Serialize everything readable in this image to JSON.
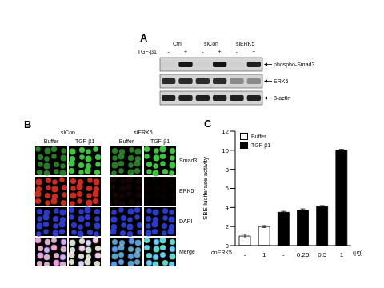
{
  "panel_a": {
    "label": "A",
    "groups": [
      "Ctrl",
      "siCon",
      "siERK5"
    ],
    "treatment_label": "TGF-β1",
    "lanes": [
      "-",
      "+",
      "-",
      "+",
      "-",
      "+"
    ],
    "bands": [
      {
        "label": "phospho-Smad3",
        "intensity": [
          0.02,
          0.9,
          0.02,
          0.9,
          0.02,
          0.85
        ]
      },
      {
        "label": "ERK5",
        "intensity": [
          0.8,
          0.8,
          0.8,
          0.8,
          0.35,
          0.35
        ]
      },
      {
        "label": "β-actin",
        "intensity": [
          0.85,
          0.85,
          0.85,
          0.85,
          0.85,
          0.85
        ]
      }
    ]
  },
  "panel_b": {
    "label": "B",
    "groups": [
      "siCon",
      "siERK5"
    ],
    "conditions": [
      "Buffer",
      "TGF-β1"
    ],
    "rows": [
      {
        "label": "Smad3",
        "color": "#40d040",
        "intensity": [
          0.6,
          0.95,
          0.6,
          0.95
        ]
      },
      {
        "label": "ERK5",
        "color": "#e03020",
        "intensity": [
          0.9,
          0.9,
          0.1,
          0.04
        ]
      },
      {
        "label": "DAPI",
        "color": "#3040e0",
        "intensity": [
          0.9,
          0.9,
          0.9,
          0.9
        ]
      }
    ],
    "merge_label": "Merge"
  },
  "chart_data": {
    "type": "bar",
    "panel_label": "C",
    "y_label": "SBE luciferase activity",
    "x_label": "dnERK5",
    "x_unit": "(μg)",
    "categories": [
      "-",
      "1",
      "-",
      "0.25",
      "0.5",
      "1"
    ],
    "series": [
      {
        "name": "Buffer",
        "color": "#ffffff",
        "values": [
          1.0,
          2.0,
          null,
          null,
          null,
          null
        ],
        "errors": [
          0.2,
          0.1,
          null,
          null,
          null,
          null
        ]
      },
      {
        "name": "TGF-β1",
        "color": "#000000",
        "values": [
          null,
          null,
          3.5,
          3.7,
          4.1,
          10.0
        ],
        "errors": [
          null,
          null,
          0.1,
          0.15,
          0.1,
          0.1
        ]
      }
    ],
    "stacked": true,
    "legend": "top-left",
    "ylim": [
      0,
      12
    ],
    "yticks": [
      0,
      2,
      4,
      6,
      8,
      10,
      12
    ]
  }
}
